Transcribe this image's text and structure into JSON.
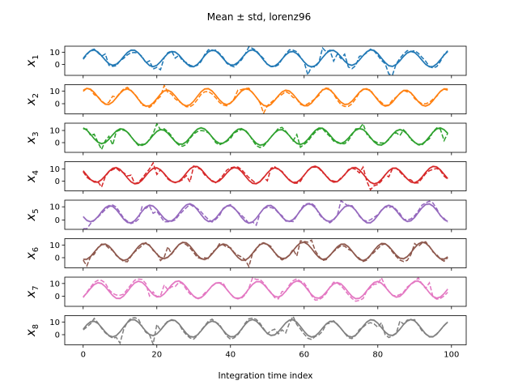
{
  "chart_data": {
    "type": "line",
    "title": "Mean ± std, lorenz96",
    "xlabel": "Integration time index",
    "xlim": [
      -5,
      104
    ],
    "x_ticks": [
      0,
      20,
      40,
      60,
      80,
      100
    ],
    "y_ticks": [
      0,
      10
    ],
    "grid": false,
    "legend": "none",
    "line_styles": {
      "mean": "solid",
      "truth": "dashed"
    },
    "panels": [
      {
        "ylabel_base": "x",
        "ylabel_sub": "1",
        "color": "#1f77b4",
        "ylim": [
          -9,
          15
        ],
        "phase": 0.0
      },
      {
        "ylabel_base": "x",
        "ylabel_sub": "2",
        "color": "#ff7f0e",
        "ylim": [
          -8,
          15
        ],
        "phase": 0.9
      },
      {
        "ylabel_base": "x",
        "ylabel_sub": "3",
        "color": "#2ca02c",
        "ylim": [
          -8,
          16
        ],
        "phase": 1.8
      },
      {
        "ylabel_base": "x",
        "ylabel_sub": "4",
        "color": "#d62728",
        "ylim": [
          -8,
          16
        ],
        "phase": 2.7
      },
      {
        "ylabel_base": "x",
        "ylabel_sub": "5",
        "color": "#9467bd",
        "ylim": [
          -7,
          15
        ],
        "phase": 3.6
      },
      {
        "ylabel_base": "x",
        "ylabel_sub": "6",
        "color": "#8c564b",
        "ylim": [
          -8,
          15
        ],
        "phase": 4.5
      },
      {
        "ylabel_base": "x",
        "ylabel_sub": "7",
        "color": "#e377c2",
        "ylim": [
          -8,
          15
        ],
        "phase": 5.4
      },
      {
        "ylabel_base": "x",
        "ylabel_sub": "8",
        "color": "#7f7f7f",
        "ylim": [
          -8,
          15
        ],
        "phase": 6.3
      }
    ]
  }
}
